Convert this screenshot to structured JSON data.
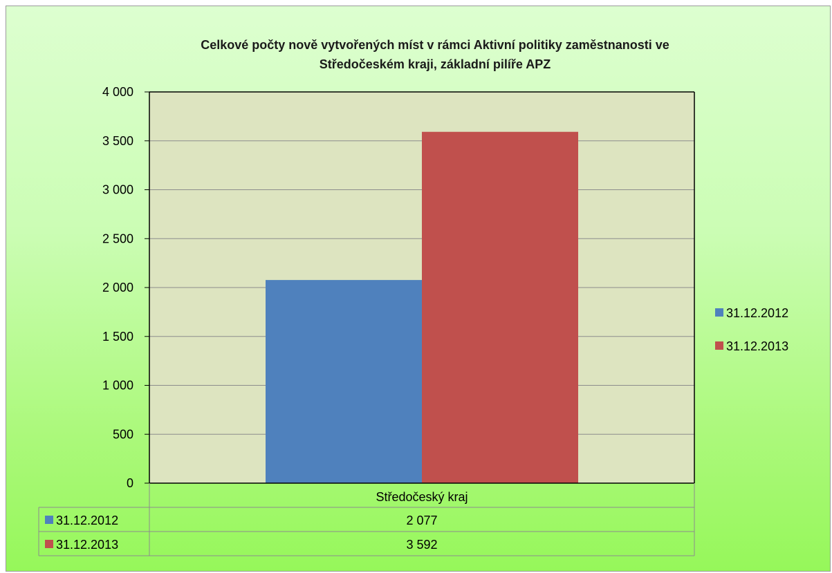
{
  "chart_data": {
    "type": "bar",
    "title_lines": [
      "Celkové počty nově vytvořených míst v rámci Aktivní politiky zaměstnanosti ve",
      "Středočeském kraji, základní pilíře APZ"
    ],
    "categories": [
      "Středočeský kraj"
    ],
    "series": [
      {
        "name": "31.12.2012",
        "values": [
          2077
        ],
        "color": "#4f81bd"
      },
      {
        "name": "31.12.2013",
        "values": [
          3592
        ],
        "color": "#c0504d"
      }
    ],
    "ylim": [
      0,
      4000
    ],
    "yticks": [
      {
        "value": 0,
        "label": "0"
      },
      {
        "value": 500,
        "label": "500"
      },
      {
        "value": 1000,
        "label": "1 000"
      },
      {
        "value": 1500,
        "label": "1 500"
      },
      {
        "value": 2000,
        "label": "2 000"
      },
      {
        "value": 2500,
        "label": "2 500"
      },
      {
        "value": 3000,
        "label": "3 000"
      },
      {
        "value": 3500,
        "label": "3 500"
      },
      {
        "value": 4000,
        "label": "4 000"
      }
    ],
    "grid": true,
    "legend_position": "right",
    "data_table": {
      "rows": [
        {
          "series": "31.12.2012",
          "values": [
            "2 077"
          ]
        },
        {
          "series": "31.12.2013",
          "values": [
            "3 592"
          ]
        }
      ]
    },
    "plot_background": "#dde4c0",
    "gridline_color": "#8c8c8c"
  }
}
